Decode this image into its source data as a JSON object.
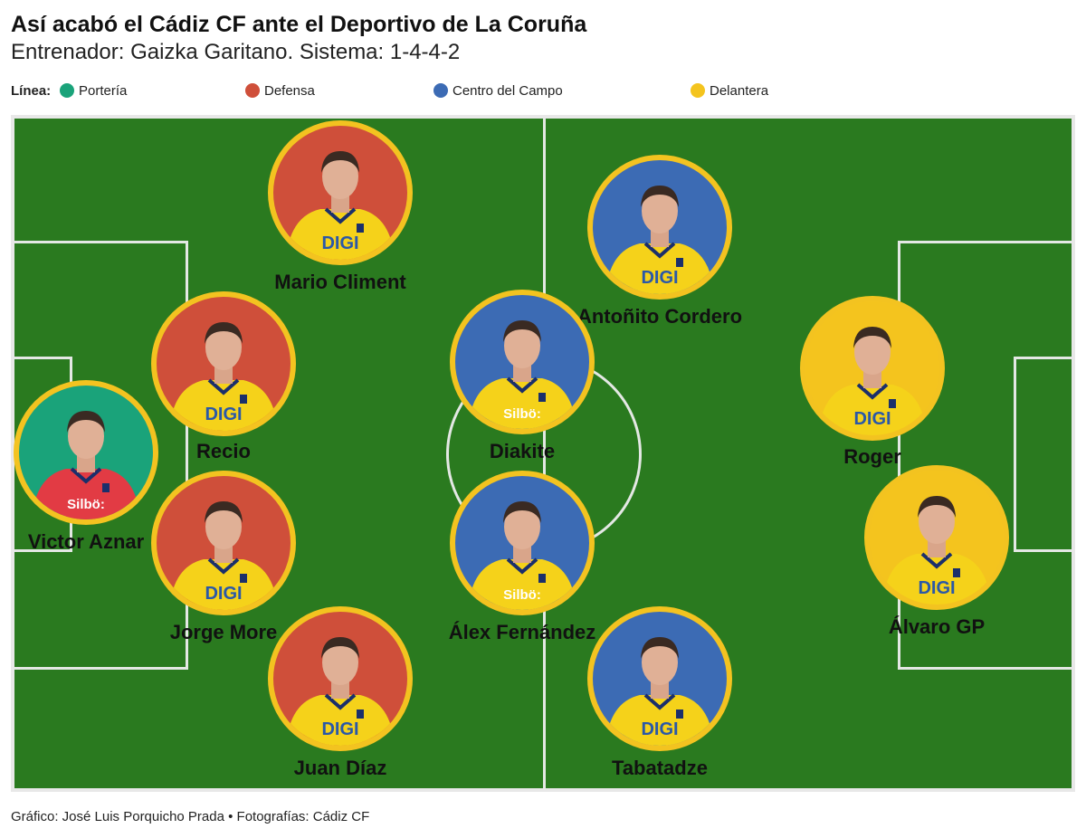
{
  "header": {
    "title": "Así acabó el Cádiz CF ante el Deportivo de La Coruña",
    "subtitle": "Entrenador: Gaizka Garitano. Sistema: 1-4-4-2"
  },
  "legend": {
    "label": "Línea:",
    "items": [
      {
        "label": "Portería",
        "color": "#1aa37a"
      },
      {
        "label": "Defensa",
        "color": "#cf4f3a"
      },
      {
        "label": "Centro del Campo",
        "color": "#3c6bb4"
      },
      {
        "label": "Delantera",
        "color": "#f4c41e"
      }
    ]
  },
  "players": [
    {
      "name": "Victor Aznar",
      "line": "Portería",
      "bg": "#1aa37a",
      "shirt": "#e23b44",
      "sponsor": "Silbö:"
    },
    {
      "name": "Mario Climent",
      "line": "Defensa",
      "bg": "#cf4f3a",
      "shirt": "#f5d21a",
      "sponsor": "DIGI"
    },
    {
      "name": "Recio",
      "line": "Defensa",
      "bg": "#cf4f3a",
      "shirt": "#f5d21a",
      "sponsor": "DIGI"
    },
    {
      "name": "Jorge More",
      "line": "Defensa",
      "bg": "#cf4f3a",
      "shirt": "#f5d21a",
      "sponsor": "DIGI"
    },
    {
      "name": "Juan Díaz",
      "line": "Defensa",
      "bg": "#cf4f3a",
      "shirt": "#f5d21a",
      "sponsor": "DIGI"
    },
    {
      "name": "Antoñito Cordero",
      "line": "Centro del Campo",
      "bg": "#3c6bb4",
      "shirt": "#f5d21a",
      "sponsor": "DIGI"
    },
    {
      "name": "Diakite",
      "line": "Centro del Campo",
      "bg": "#3c6bb4",
      "shirt": "#f5d21a",
      "sponsor": "Silbö:"
    },
    {
      "name": "Álex Fernández",
      "line": "Centro del Campo",
      "bg": "#3c6bb4",
      "shirt": "#f5d21a",
      "sponsor": "Silbö:"
    },
    {
      "name": "Tabatadze",
      "line": "Centro del Campo",
      "bg": "#3c6bb4",
      "shirt": "#f5d21a",
      "sponsor": "DIGI"
    },
    {
      "name": "Roger",
      "line": "Delantera",
      "bg": "#f4c41e",
      "shirt": "#f5d21a",
      "sponsor": "DIGI"
    },
    {
      "name": "Álvaro GP",
      "line": "Delantera",
      "bg": "#f4c41e",
      "shirt": "#f5d21a",
      "sponsor": "DIGI"
    }
  ],
  "footer": {
    "credit": "Gráfico: José Luis Porquicho Prada • Fotografías: Cádiz CF"
  }
}
